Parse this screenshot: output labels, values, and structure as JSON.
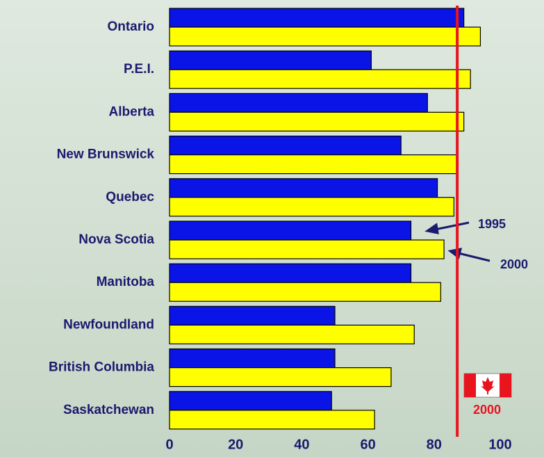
{
  "chart_data": {
    "type": "hbar",
    "categories": [
      "Ontario",
      "P.E.I.",
      "Alberta",
      "New Brunswick",
      "Quebec",
      "Nova Scotia",
      "Manitoba",
      "Newfoundland",
      "British Columbia",
      "Saskatchewan"
    ],
    "series": [
      {
        "name": "1995",
        "color": "#0a14e6",
        "values": [
          89,
          61,
          78,
          70,
          81,
          73,
          73,
          50,
          50,
          49
        ]
      },
      {
        "name": "2000",
        "color": "#ffff00",
        "values": [
          94,
          91,
          89,
          87,
          86,
          83,
          82,
          74,
          67,
          62
        ]
      }
    ],
    "xlim": [
      0,
      100
    ],
    "xticks": [
      0,
      20,
      40,
      60,
      80,
      100
    ],
    "reference_line": {
      "value": 87,
      "label": "2000",
      "color": "#e8141e"
    }
  }
}
